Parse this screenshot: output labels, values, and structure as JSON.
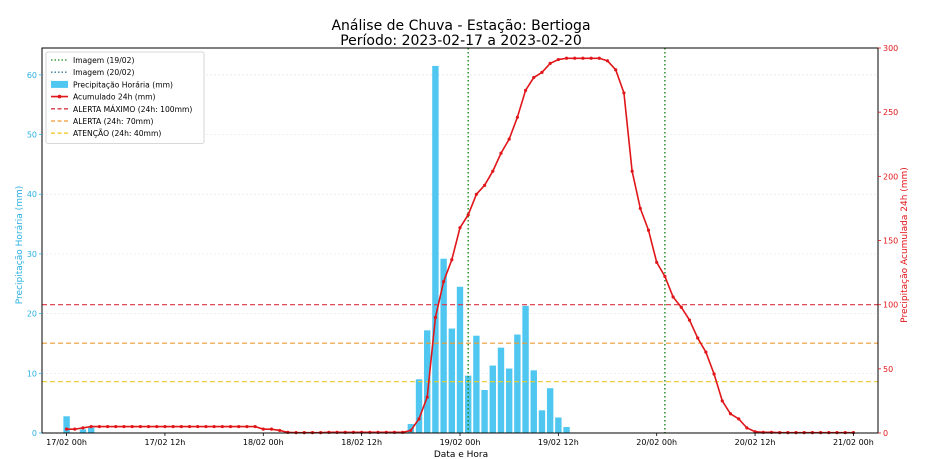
{
  "chart_data": {
    "type": "bar",
    "title": "Análise de Chuva - Estação: Bertioga",
    "subtitle": "Período: 2023-02-17 a 2023-02-20",
    "xlabel": "Data e Hora",
    "ylabel_left": "Precipitação Horária (mm)",
    "ylabel_right": "Precipitação Acumulada 24h (mm)",
    "x_ticks": [
      "17/02 00h",
      "17/02 12h",
      "18/02 00h",
      "18/02 12h",
      "19/02 00h",
      "19/02 12h",
      "20/02 00h",
      "20/02 12h",
      "21/02 00h"
    ],
    "x_range_hours": [
      -3,
      99
    ],
    "y_left_ticks": [
      0,
      10,
      20,
      30,
      40,
      50,
      60
    ],
    "y_left_range": [
      0,
      64.5
    ],
    "y_right_ticks": [
      0,
      50,
      100,
      150,
      200,
      250,
      300
    ],
    "y_right_range": [
      0,
      300
    ],
    "grid": true,
    "legend_position": "top-left",
    "colors": {
      "bars": "#4fc7f0",
      "accum": "#e0161a",
      "image_line": "#1a8a1a",
      "alert_max": "#dc3545",
      "alert": "#f09a30",
      "attention": "#f0cc2a",
      "left_axis": "#2bb0e0",
      "right_axis": "#e0161a"
    },
    "legend": [
      {
        "label": "Imagem (19/02)",
        "style": "dotted",
        "color": "#1a8a1a"
      },
      {
        "label": "Imagem (20/02)",
        "style": "dotted",
        "color": "#3a7a9a"
      },
      {
        "label": "Precipitação Horária (mm)",
        "style": "patch",
        "color": "#4fc7f0"
      },
      {
        "label": "Acumulado 24h (mm)",
        "style": "line-marker",
        "color": "#e0161a"
      },
      {
        "label": "ALERTA MÁXIMO (24h: 100mm)",
        "style": "dashed",
        "color": "#dc3545"
      },
      {
        "label": "ALERTA (24h: 70mm)",
        "style": "dashed",
        "color": "#f09a30"
      },
      {
        "label": "ATENÇÃO (24h: 40mm)",
        "style": "dashed",
        "color": "#f0cc2a"
      }
    ],
    "image_lines_hours": [
      49,
      73
    ],
    "threshold_lines": [
      {
        "name": "ALERTA MÁXIMO",
        "value": 100
      },
      {
        "name": "ALERTA",
        "value": 70
      },
      {
        "name": "ATENÇÃO",
        "value": 40
      }
    ],
    "hourly_precip": {
      "x_hours": [
        0,
        2,
        3,
        42,
        43,
        44,
        45,
        46,
        47,
        48,
        49,
        50,
        51,
        52,
        53,
        54,
        55,
        56,
        57,
        58,
        59,
        60,
        61,
        62
      ],
      "values": [
        2.8,
        0.6,
        0.9,
        1.5,
        9.0,
        17.2,
        61.5,
        29.2,
        17.5,
        24.5,
        9.6,
        16.3,
        7.2,
        11.3,
        14.3,
        10.8,
        16.5,
        21.3,
        10.5,
        3.8,
        7.5,
        2.6,
        1.0,
        0.0
      ]
    },
    "accum_24h": {
      "x_hours": [
        0,
        1,
        2,
        3,
        4,
        5,
        6,
        7,
        8,
        9,
        10,
        11,
        12,
        13,
        14,
        15,
        16,
        17,
        18,
        19,
        20,
        21,
        22,
        23,
        24,
        25,
        26,
        27,
        28,
        29,
        30,
        31,
        32,
        33,
        34,
        35,
        36,
        37,
        38,
        39,
        40,
        41,
        42,
        43,
        44,
        45,
        46,
        47,
        48,
        49,
        50,
        51,
        52,
        53,
        54,
        55,
        56,
        57,
        58,
        59,
        60,
        61,
        62,
        63,
        64,
        65,
        66,
        67,
        68,
        69,
        70,
        71,
        72,
        73,
        74,
        75,
        76,
        77,
        78,
        79,
        80,
        81,
        82,
        83,
        84,
        85,
        86,
        87,
        88,
        89,
        90,
        91,
        92,
        93,
        94,
        95,
        96
      ],
      "values": [
        3,
        3,
        4,
        5,
        5,
        5,
        5,
        5,
        5,
        5,
        5,
        5,
        5,
        5,
        5,
        5,
        5,
        5,
        5,
        5,
        5,
        5,
        5,
        5,
        3,
        3,
        2,
        0.5,
        0.3,
        0.3,
        0.3,
        0.3,
        0.5,
        0.5,
        0.5,
        0.5,
        0.5,
        0.5,
        0.5,
        0.5,
        0.5,
        0.5,
        2,
        11,
        28,
        90,
        118,
        135,
        160,
        170,
        186,
        193,
        204,
        218,
        229,
        246,
        267,
        277,
        281,
        288,
        291,
        292,
        292,
        292,
        292,
        292,
        290,
        283,
        265,
        204,
        175,
        158,
        133,
        122,
        106,
        98,
        88,
        74,
        63,
        46,
        25,
        15,
        11,
        4,
        1,
        0.5,
        0.5,
        0.3,
        0.3,
        0.3,
        0.3,
        0.3,
        0.3,
        0.3,
        0.3,
        0.3,
        0.3
      ]
    }
  }
}
